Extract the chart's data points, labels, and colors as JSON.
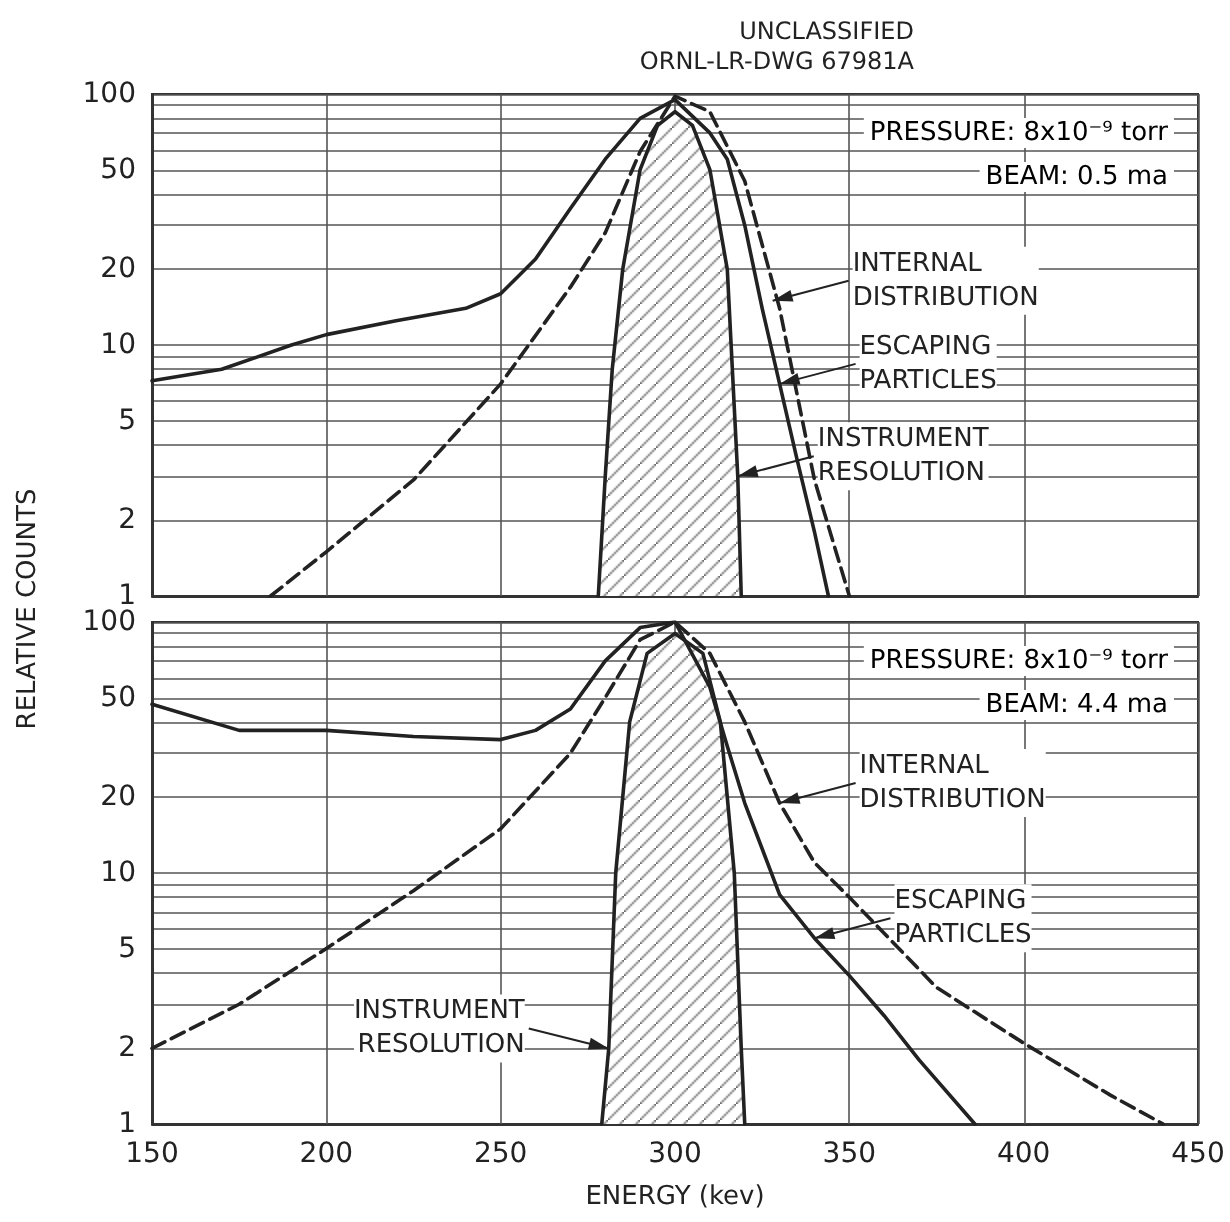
{
  "chart_data": [
    {
      "type": "line",
      "title": "UNCLASSIFIED\nORNL-LR-DWG 67981A",
      "ylabel": "RELATIVE COUNTS",
      "log": "y",
      "grid": true,
      "marker": "none",
      "tick_labels": "y",
      "xlim": [
        150,
        450
      ],
      "xticks": [
        150,
        200,
        250,
        300,
        350,
        400,
        450
      ],
      "ylim": [
        1,
        100
      ],
      "yticks": [
        1,
        2,
        {
          "value": 3,
          "label": null
        },
        {
          "value": 4,
          "label": null
        },
        5,
        {
          "value": 6,
          "label": null
        },
        {
          "value": 7,
          "label": null
        },
        {
          "value": 8,
          "label": null
        },
        {
          "value": 9,
          "label": null
        },
        10,
        20,
        {
          "value": 30,
          "label": null
        },
        {
          "value": 40,
          "label": null
        },
        50,
        {
          "value": 60,
          "label": null
        },
        {
          "value": 70,
          "label": null
        },
        {
          "value": 80,
          "label": null
        },
        {
          "value": 90,
          "label": null
        },
        100
      ],
      "series": [
        {
          "color": "#222222",
          "line_style": "solid",
          "x": [
            150,
            170,
            190,
            200,
            220,
            240,
            250,
            260,
            270,
            280,
            290,
            300,
            310,
            315,
            320,
            325,
            330,
            335,
            340,
            344
          ],
          "values": [
            7.2,
            8,
            10,
            11,
            12.5,
            14,
            16,
            22,
            35,
            55,
            80,
            95,
            70,
            55,
            30,
            14,
            7,
            3.5,
            1.8,
            1
          ]
        },
        {
          "color": "#222222",
          "line_style": "dashed",
          "x": [
            184,
            200,
            225,
            250,
            270,
            280,
            290,
            300,
            310,
            320,
            330,
            340,
            350
          ],
          "values": [
            1,
            1.5,
            2.9,
            7,
            17,
            28,
            59,
            98,
            85,
            45,
            14,
            2.9,
            1
          ]
        },
        {
          "type": "area",
          "color": "#222222",
          "line_style": "solid",
          "x": [
            278,
            280,
            282,
            285,
            290,
            295,
            300,
            305,
            310,
            315,
            318,
            319
          ],
          "values": [
            1,
            3,
            8,
            20,
            50,
            75,
            85,
            75,
            50,
            20,
            3,
            1
          ]
        }
      ],
      "annotations": [
        "PRESSURE: 8x10⁻⁹ torr",
        "BEAM: 0.5 ma",
        {
          "text": "INTERNAL\nDISTRIBUTION",
          "x": 328,
          "y": 15
        },
        {
          "text": "ESCAPING\nPARTICLES",
          "x": 330,
          "y": 7
        },
        {
          "text": "INSTRUMENT\nRESOLUTION",
          "x": 318,
          "y": 3
        }
      ]
    },
    {
      "type": "line",
      "xlabel": "ENERGY (kev)",
      "log": "y",
      "grid": true,
      "marker": "none",
      "xlim": [
        150,
        450
      ],
      "xticks": [
        150,
        200,
        250,
        300,
        350,
        400,
        450
      ],
      "ylim": [
        1,
        100
      ],
      "yticks": [
        1,
        2,
        {
          "value": 3,
          "label": null
        },
        {
          "value": 4,
          "label": null
        },
        5,
        {
          "value": 6,
          "label": null
        },
        {
          "value": 7,
          "label": null
        },
        {
          "value": 8,
          "label": null
        },
        {
          "value": 9,
          "label": null
        },
        10,
        20,
        {
          "value": 30,
          "label": null
        },
        {
          "value": 40,
          "label": null
        },
        50,
        {
          "value": 60,
          "label": null
        },
        {
          "value": 70,
          "label": null
        },
        {
          "value": 80,
          "label": null
        },
        {
          "value": 90,
          "label": null
        },
        100
      ],
      "series": [
        {
          "color": "#222222",
          "line_style": "solid",
          "x": [
            150,
            175,
            200,
            225,
            250,
            260,
            270,
            280,
            290,
            300,
            310,
            315,
            320,
            330,
            340,
            350,
            360,
            370,
            386
          ],
          "values": [
            47,
            37,
            37,
            35,
            34,
            37,
            45,
            70,
            95,
            100,
            55,
            32,
            19,
            8.2,
            5.5,
            3.9,
            2.7,
            1.8,
            1
          ]
        },
        {
          "color": "#222222",
          "line_style": "dashed",
          "x": [
            150,
            175,
            200,
            225,
            250,
            270,
            280,
            290,
            300,
            310,
            320,
            330,
            340,
            350,
            375,
            400,
            425,
            440
          ],
          "values": [
            2,
            3,
            5,
            8.5,
            15,
            30,
            50,
            85,
            100,
            75,
            40,
            19,
            11,
            8,
            3.5,
            2.1,
            1.3,
            1
          ]
        },
        {
          "type": "area",
          "color": "#222222",
          "line_style": "solid",
          "x": [
            279,
            281,
            283,
            287,
            292,
            300,
            308,
            313,
            317,
            319,
            320
          ],
          "values": [
            1,
            2,
            10,
            40,
            75,
            90,
            75,
            40,
            10,
            2,
            1
          ]
        }
      ],
      "annotations": [
        "PRESSURE: 8x10⁻⁹ torr",
        "BEAM: 4.4 ma",
        {
          "text": "INTERNAL\nDISTRIBUTION",
          "x": 330,
          "y": 19
        },
        {
          "text": "ESCAPING\nPARTICLES",
          "x": 340,
          "y": 5.5
        },
        {
          "text": "INSTRUMENT\nRESOLUTION",
          "x": 281,
          "y": 2
        }
      ]
    }
  ]
}
